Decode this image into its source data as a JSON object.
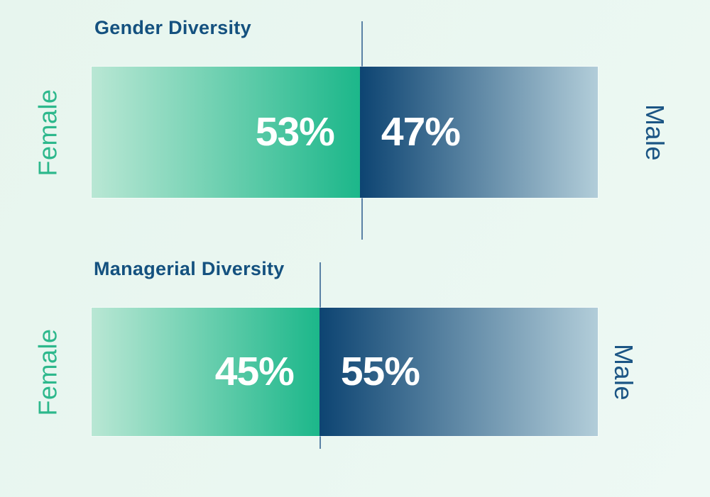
{
  "colors": {
    "bg": "#e9f6f0",
    "title": "#14517f",
    "female_start": "#b9e7d4",
    "female_end": "#1cb78a",
    "male_start": "#0d4472",
    "male_end": "#b2cdd9",
    "female_label": "#2db88c",
    "male_label": "#1b5584",
    "line": "#5b82a6",
    "pct": "#ffffff"
  },
  "chart_data": [
    {
      "type": "bar",
      "orientation": "horizontal",
      "stacked": true,
      "title": "Gender Diversity",
      "categories": [
        "Female",
        "Male"
      ],
      "values": [
        53,
        47
      ],
      "unit": "%",
      "data_labels": [
        "53%",
        "47%"
      ],
      "left_axis_label": "Female",
      "right_axis_label": "Male",
      "legend": "none",
      "grid": "off",
      "annotations": [
        "vertical divider line at segment boundary"
      ]
    },
    {
      "type": "bar",
      "orientation": "horizontal",
      "stacked": true,
      "title": "Managerial Diversity",
      "categories": [
        "Female",
        "Male"
      ],
      "values": [
        45,
        55
      ],
      "unit": "%",
      "data_labels": [
        "45%",
        "55%"
      ],
      "left_axis_label": "Female",
      "right_axis_label": "Male",
      "legend": "none",
      "grid": "off",
      "annotations": [
        "vertical divider line at segment boundary"
      ]
    }
  ]
}
